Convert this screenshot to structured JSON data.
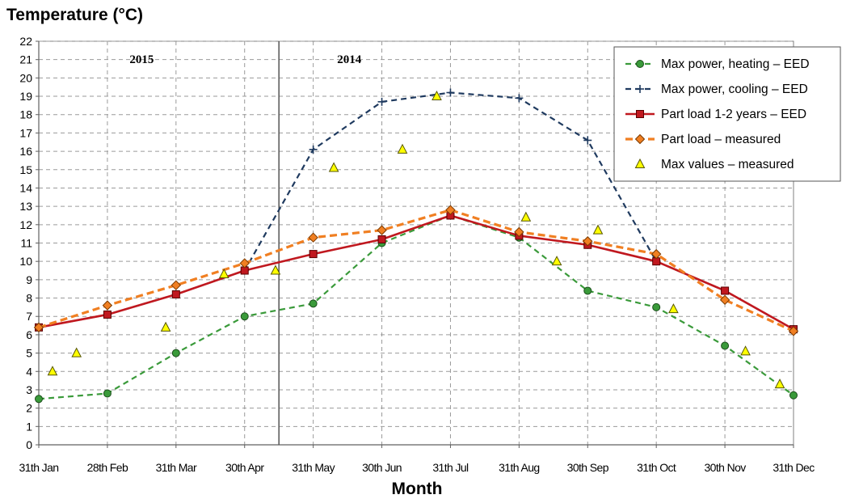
{
  "chart_data": {
    "type": "line",
    "ylabel": "Temperature (°C)",
    "xlabel": "Month",
    "categories": [
      "31th Jan",
      "28th Feb",
      "31th Mar",
      "30th Apr",
      "31th May",
      "30th Jun",
      "31th Jul",
      "31th Aug",
      "30th Sep",
      "31th Oct",
      "30th Nov",
      "31th Dec"
    ],
    "ylim": [
      0,
      22
    ],
    "ytick_step": 1,
    "grid": true,
    "legend_position": "top-right",
    "period_labels": [
      {
        "text": "2015",
        "from_category": 0,
        "to_category": 3
      },
      {
        "text": "2014",
        "from_category": 3.5,
        "to_category": 11
      }
    ],
    "divider_at_category": 3.5,
    "series": [
      {
        "name": "Max power, heating – EED",
        "color": "#3a9a3a",
        "style": "dashed",
        "marker": "circle",
        "x": [
          0,
          1,
          2,
          3,
          4,
          5,
          6,
          7,
          8,
          9,
          10,
          11
        ],
        "values": [
          2.5,
          2.8,
          5.0,
          7.0,
          7.7,
          11.0,
          12.5,
          11.3,
          8.4,
          7.5,
          5.4,
          2.7
        ]
      },
      {
        "name": "Max power, cooling – EED",
        "color": "#1f3a5f",
        "style": "dashed",
        "marker": "plus",
        "x": [
          0,
          1,
          2,
          3,
          4,
          5,
          6,
          7,
          8,
          9,
          10,
          11
        ],
        "values": [
          6.4,
          7.1,
          8.2,
          9.5,
          16.1,
          18.7,
          19.2,
          18.9,
          16.6,
          10.0,
          8.4,
          6.3
        ]
      },
      {
        "name": "Part load 1-2 years – EED",
        "color": "#c0181f",
        "style": "solid",
        "marker": "square",
        "x": [
          0,
          1,
          2,
          3,
          4,
          5,
          6,
          7,
          8,
          9,
          10,
          11
        ],
        "values": [
          6.4,
          7.1,
          8.2,
          9.5,
          10.4,
          11.2,
          12.5,
          11.4,
          10.9,
          10.0,
          8.4,
          6.3
        ]
      },
      {
        "name": "Part load – measured",
        "color": "#f07f22",
        "style": "dashed",
        "marker": "diamond",
        "x": [
          0,
          1,
          2,
          3,
          4,
          5,
          6,
          7,
          8,
          9,
          10,
          11
        ],
        "values": [
          6.4,
          7.6,
          8.7,
          9.9,
          11.3,
          11.7,
          12.8,
          11.6,
          11.1,
          10.4,
          7.9,
          6.2
        ]
      },
      {
        "name": "Max values – measured",
        "color": "#ffff00",
        "style": "none",
        "marker": "triangle",
        "x": [
          0.2,
          0.55,
          1.85,
          2.7,
          3.45,
          4.3,
          5.3,
          5.8,
          7.1,
          7.55,
          8.15,
          9.25,
          10.3,
          10.8
        ],
        "values": [
          4.0,
          5.0,
          6.4,
          9.3,
          9.5,
          15.1,
          16.1,
          19.0,
          12.4,
          10.0,
          11.7,
          7.4,
          5.1,
          3.3
        ]
      }
    ]
  }
}
